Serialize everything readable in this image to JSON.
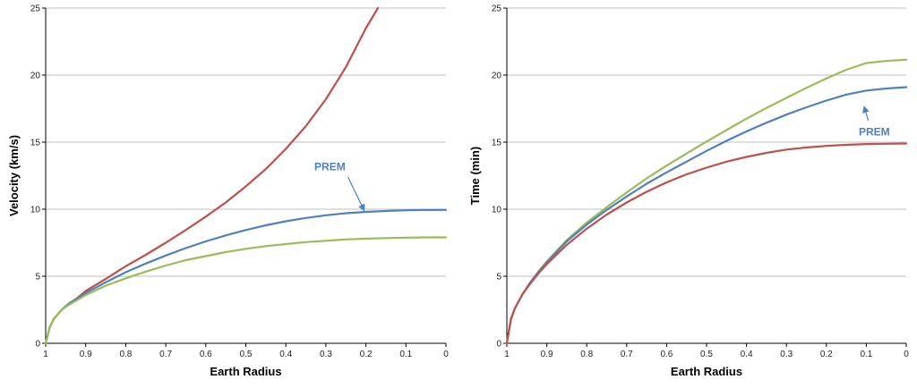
{
  "chart_data": [
    {
      "type": "line",
      "title": "",
      "xlabel": "Earth Radius",
      "ylabel": "Velocity (km/s)",
      "xlim": [
        1,
        0
      ],
      "ylim": [
        0,
        25
      ],
      "xticks": [
        "1",
        "0.9",
        "0.8",
        "0.7",
        "0.6",
        "0.5",
        "0.4",
        "0.3",
        "0.2",
        "0.1",
        "0"
      ],
      "yticks": [
        "0",
        "5",
        "10",
        "15",
        "20",
        "25"
      ],
      "grid": "horizontal",
      "annotation": {
        "text": "PREM",
        "color": "#4F81BD",
        "text_at": [
          0.29,
          12.9
        ],
        "arrow_from": [
          0.245,
          12.4
        ],
        "arrow_to": [
          0.205,
          9.95
        ]
      },
      "series": [
        {
          "name": "red",
          "color": "#C0504D",
          "x": [
            1,
            0.99,
            0.98,
            0.96,
            0.94,
            0.92,
            0.9,
            0.85,
            0.8,
            0.75,
            0.7,
            0.65,
            0.6,
            0.55,
            0.5,
            0.45,
            0.4,
            0.35,
            0.3,
            0.25,
            0.2,
            0.17
          ],
          "y": [
            0,
            1.2,
            1.8,
            2.5,
            3.0,
            3.4,
            3.9,
            4.8,
            5.75,
            6.6,
            7.5,
            8.45,
            9.45,
            10.5,
            11.7,
            13.0,
            14.5,
            16.2,
            18.2,
            20.6,
            23.5,
            25
          ]
        },
        {
          "name": "blue",
          "color": "#4F81BD",
          "x": [
            1,
            0.99,
            0.98,
            0.96,
            0.94,
            0.92,
            0.9,
            0.85,
            0.8,
            0.75,
            0.7,
            0.65,
            0.6,
            0.55,
            0.5,
            0.45,
            0.4,
            0.35,
            0.3,
            0.25,
            0.2,
            0.15,
            0.1,
            0.05,
            0
          ],
          "y": [
            0,
            1.2,
            1.8,
            2.5,
            3.0,
            3.35,
            3.75,
            4.55,
            5.3,
            5.95,
            6.55,
            7.1,
            7.6,
            8.05,
            8.45,
            8.8,
            9.1,
            9.35,
            9.55,
            9.7,
            9.8,
            9.87,
            9.92,
            9.94,
            9.95
          ]
        },
        {
          "name": "green",
          "color": "#9BBB59",
          "x": [
            1,
            0.99,
            0.98,
            0.96,
            0.94,
            0.92,
            0.9,
            0.85,
            0.8,
            0.75,
            0.7,
            0.65,
            0.6,
            0.55,
            0.5,
            0.45,
            0.4,
            0.35,
            0.3,
            0.25,
            0.2,
            0.15,
            0.1,
            0.05,
            0
          ],
          "y": [
            0,
            1.2,
            1.8,
            2.5,
            2.9,
            3.25,
            3.6,
            4.3,
            4.85,
            5.35,
            5.8,
            6.2,
            6.5,
            6.8,
            7.05,
            7.25,
            7.4,
            7.55,
            7.65,
            7.75,
            7.8,
            7.85,
            7.88,
            7.9,
            7.9
          ]
        }
      ]
    },
    {
      "type": "line",
      "title": "",
      "xlabel": "Earth Radius",
      "ylabel": "Time (min)",
      "xlim": [
        1,
        0
      ],
      "ylim": [
        0,
        25
      ],
      "xticks": [
        "1",
        "0.9",
        "0.8",
        "0.7",
        "0.6",
        "0.5",
        "0.4",
        "0.3",
        "0.2",
        "0.1",
        "0"
      ],
      "yticks": [
        "0",
        "5",
        "10",
        "15",
        "20",
        "25"
      ],
      "grid": "horizontal",
      "annotation": {
        "text": "PREM",
        "color": "#4F81BD",
        "text_at": [
          0.08,
          15.5
        ],
        "arrow_from": [
          0.095,
          16.6
        ],
        "arrow_to": [
          0.105,
          17.6
        ]
      },
      "series": [
        {
          "name": "green",
          "color": "#9BBB59",
          "x": [
            1,
            0.99,
            0.98,
            0.96,
            0.94,
            0.92,
            0.9,
            0.85,
            0.8,
            0.75,
            0.7,
            0.65,
            0.6,
            0.55,
            0.5,
            0.45,
            0.4,
            0.35,
            0.3,
            0.25,
            0.2,
            0.15,
            0.1,
            0.05,
            0
          ],
          "y": [
            0,
            1.8,
            2.6,
            3.7,
            4.6,
            5.4,
            6.1,
            7.7,
            9.0,
            10.15,
            11.25,
            12.3,
            13.25,
            14.15,
            15.05,
            15.9,
            16.75,
            17.55,
            18.3,
            19.05,
            19.75,
            20.4,
            20.9,
            21.05,
            21.15
          ]
        },
        {
          "name": "blue",
          "color": "#4F81BD",
          "x": [
            1,
            0.99,
            0.98,
            0.96,
            0.94,
            0.92,
            0.9,
            0.85,
            0.8,
            0.75,
            0.7,
            0.65,
            0.6,
            0.55,
            0.5,
            0.45,
            0.4,
            0.35,
            0.3,
            0.25,
            0.2,
            0.15,
            0.1,
            0.05,
            0
          ],
          "y": [
            0,
            1.8,
            2.6,
            3.7,
            4.6,
            5.35,
            6.05,
            7.6,
            8.85,
            9.95,
            10.95,
            11.9,
            12.75,
            13.55,
            14.35,
            15.1,
            15.8,
            16.45,
            17.05,
            17.6,
            18.1,
            18.55,
            18.85,
            19.0,
            19.1
          ]
        },
        {
          "name": "red",
          "color": "#C0504D",
          "x": [
            1,
            0.99,
            0.98,
            0.96,
            0.94,
            0.92,
            0.9,
            0.85,
            0.8,
            0.75,
            0.7,
            0.65,
            0.6,
            0.55,
            0.5,
            0.45,
            0.4,
            0.35,
            0.3,
            0.25,
            0.2,
            0.15,
            0.1,
            0.05,
            0
          ],
          "y": [
            0,
            1.8,
            2.6,
            3.7,
            4.5,
            5.25,
            5.9,
            7.35,
            8.55,
            9.6,
            10.5,
            11.3,
            12.0,
            12.6,
            13.1,
            13.55,
            13.9,
            14.2,
            14.45,
            14.6,
            14.72,
            14.8,
            14.86,
            14.88,
            14.9
          ]
        }
      ]
    }
  ]
}
